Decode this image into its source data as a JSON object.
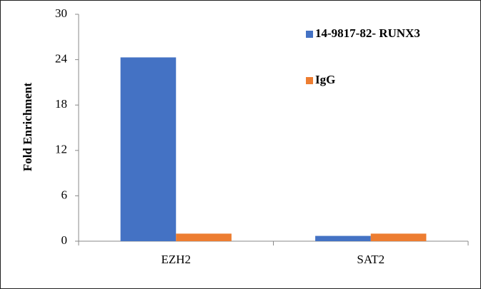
{
  "chart_data": {
    "type": "bar",
    "y_label": "Fold Enrichment",
    "categories": [
      "EZH2",
      "SAT2"
    ],
    "series": [
      {
        "name": "14-9817-82- RUNX3",
        "color": "#4472c4",
        "values": [
          24.3,
          0.7
        ]
      },
      {
        "name": "IgG",
        "color": "#ed7d31",
        "values": [
          1.0,
          1.0
        ]
      }
    ],
    "ylim": [
      0,
      30
    ],
    "yticks": [
      0,
      6,
      12,
      18,
      24,
      30
    ],
    "legend": "upper right"
  }
}
